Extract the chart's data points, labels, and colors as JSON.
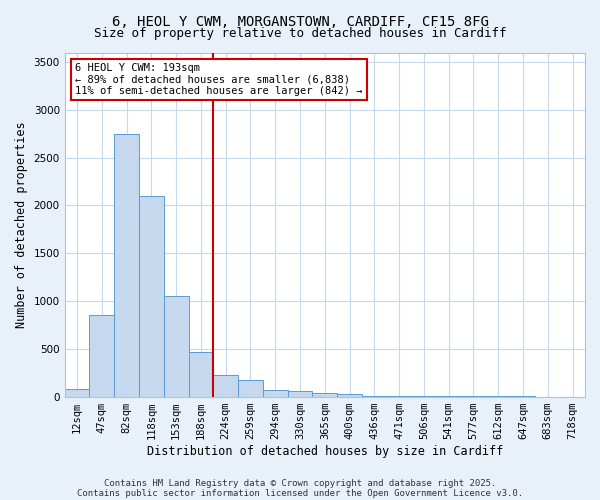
{
  "title_line1": "6, HEOL Y CWM, MORGANSTOWN, CARDIFF, CF15 8FG",
  "title_line2": "Size of property relative to detached houses in Cardiff",
  "categories": [
    "12sqm",
    "47sqm",
    "82sqm",
    "118sqm",
    "153sqm",
    "188sqm",
    "224sqm",
    "259sqm",
    "294sqm",
    "330sqm",
    "365sqm",
    "400sqm",
    "436sqm",
    "471sqm",
    "506sqm",
    "541sqm",
    "577sqm",
    "612sqm",
    "647sqm",
    "683sqm",
    "718sqm"
  ],
  "values": [
    75,
    850,
    2750,
    2100,
    1050,
    470,
    230,
    175,
    70,
    55,
    40,
    30,
    10,
    8,
    5,
    3,
    2,
    1,
    1,
    0,
    0
  ],
  "bar_color": "#c5d8ed",
  "bar_edgecolor": "#5b9bd5",
  "vline_x": 5.5,
  "vline_color": "#cc0000",
  "annotation_text": "6 HEOL Y CWM: 193sqm\n← 89% of detached houses are smaller (6,838)\n11% of semi-detached houses are larger (842) →",
  "annotation_box_edgecolor": "#cc0000",
  "annotation_box_facecolor": "#ffffff",
  "xlabel": "Distribution of detached houses by size in Cardiff",
  "ylabel": "Number of detached properties",
  "ylim": [
    0,
    3600
  ],
  "yticks": [
    0,
    500,
    1000,
    1500,
    2000,
    2500,
    3000,
    3500
  ],
  "footnote_line1": "Contains HM Land Registry data © Crown copyright and database right 2025.",
  "footnote_line2": "Contains public sector information licensed under the Open Government Licence v3.0.",
  "bg_color": "#e8f1fa",
  "plot_bg_color": "#ffffff",
  "grid_color": "#c5d8ed",
  "title_fontsize": 10,
  "subtitle_fontsize": 9,
  "axis_label_fontsize": 8.5,
  "tick_fontsize": 7.5,
  "annot_fontsize": 7.5,
  "footnote_fontsize": 6.5
}
